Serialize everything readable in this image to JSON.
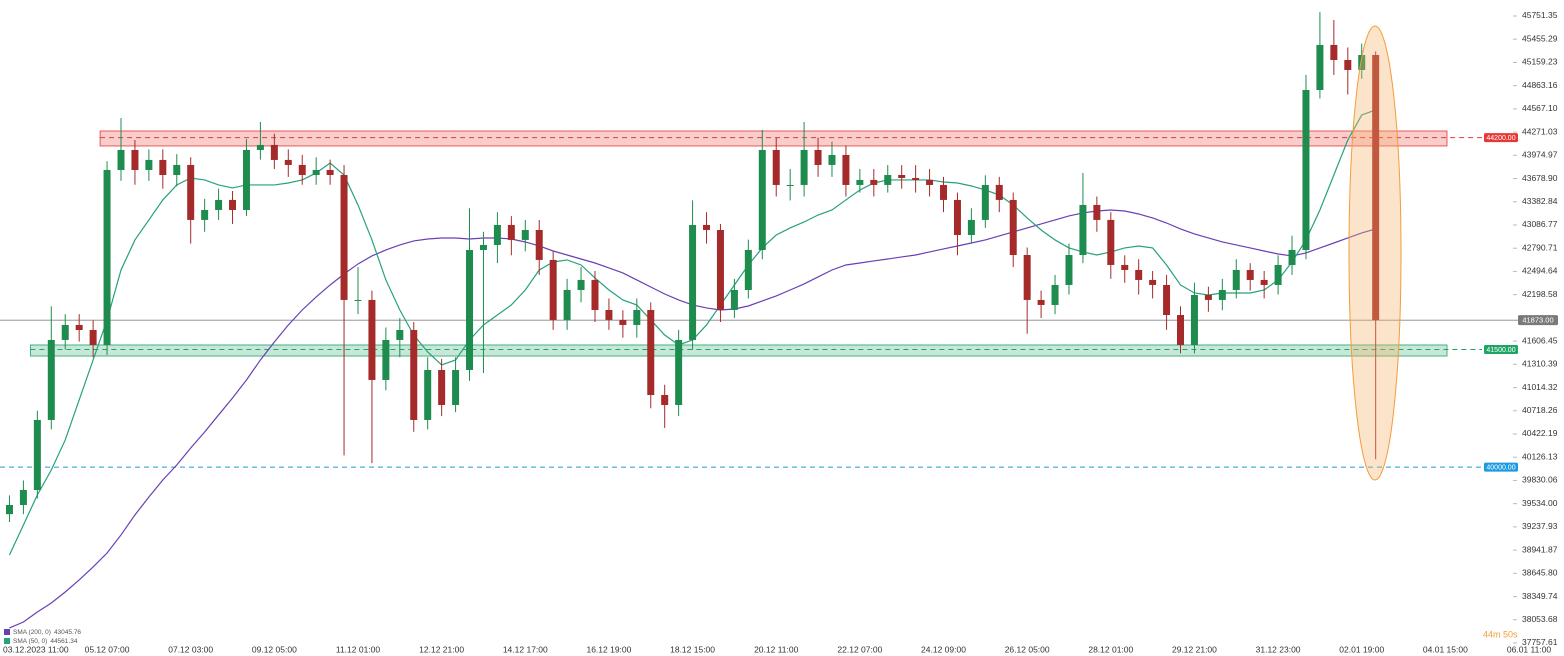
{
  "chart_data": {
    "type": "candlestick",
    "categories": [
      null,
      "03.12.2023 11:00",
      null,
      null,
      null,
      null,
      null,
      "05.12 07:00",
      null,
      null,
      null,
      null,
      null,
      "07.12 03:00",
      null,
      null,
      null,
      null,
      null,
      "09.12 05:00",
      null,
      null,
      null,
      null,
      null,
      "11.12 01:00",
      null,
      null,
      null,
      null,
      null,
      "12.12 21:00",
      null,
      null,
      null,
      null,
      null,
      "14.12 17:00",
      null,
      null,
      null,
      null,
      null,
      "16.12 19:00",
      null,
      null,
      null,
      null,
      null,
      "18.12 15:00",
      null,
      null,
      null,
      null,
      null,
      "20.12 11:00",
      null,
      null,
      null,
      null,
      null,
      "22.12 07:00",
      null,
      null,
      null,
      null,
      null,
      "24.12 09:00",
      null,
      null,
      null,
      null,
      null,
      "26.12 05:00",
      null,
      null,
      null,
      null,
      null,
      "28.12 01:00",
      null,
      null,
      null,
      null,
      null,
      "29.12 21:00",
      null,
      null,
      null,
      null,
      null,
      "31.12 23:00",
      null,
      null,
      null,
      null,
      null,
      "02.01 19:00",
      null,
      null,
      null,
      null,
      null,
      "04.01 15:00",
      null,
      null,
      null,
      null,
      null,
      "06.01 11:00"
    ],
    "open": [
      39400,
      39517,
      39708,
      40601,
      41621,
      41812,
      41748,
      41557,
      43788,
      44043,
      43788,
      43916,
      43724,
      43852,
      43151,
      43278,
      43406,
      43278,
      44043,
      44107,
      43916,
      43852,
      43724,
      43788,
      43724,
      42131,
      42131,
      41111,
      41621,
      41748,
      40601,
      41238,
      40792,
      41238,
      42768,
      42832,
      43087,
      42896,
      43023,
      42641,
      41876,
      42258,
      42386,
      42003,
      41876,
      41812,
      42003,
      40919,
      40792,
      41621,
      43087,
      43023,
      42003,
      42258,
      42768,
      44043,
      43597,
      43597,
      44043,
      43852,
      43979,
      43597,
      43661,
      43597,
      43724,
      43686,
      43661,
      43597,
      43406,
      42959,
      43151,
      43597,
      43406,
      42704,
      42131,
      42067,
      42322,
      42704,
      43342,
      43151,
      42577,
      42513,
      42386,
      42322,
      41939,
      41557,
      42194,
      42131,
      42258,
      42513,
      42386,
      42322,
      42577,
      42768,
      44808,
      45382,
      45190,
      45063,
      45254,
      null,
      null,
      null,
      null,
      null,
      null,
      null,
      null,
      null,
      null,
      null
    ],
    "high": [
      39640,
      39830,
      40720,
      42050,
      41950,
      41950,
      41870,
      43900,
      44450,
      44170,
      44050,
      44050,
      43990,
      43950,
      43420,
      43550,
      43520,
      44180,
      44400,
      44250,
      44050,
      43980,
      43950,
      43920,
      43850,
      42550,
      42250,
      41780,
      41900,
      41850,
      41400,
      41380,
      41400,
      43300,
      43000,
      43250,
      43200,
      43150,
      43150,
      42750,
      42400,
      42550,
      42500,
      42150,
      42000,
      42150,
      42100,
      41050,
      41750,
      43400,
      43250,
      43100,
      42400,
      42900,
      44300,
      44200,
      43800,
      44400,
      44200,
      44150,
      44100,
      43800,
      43800,
      43850,
      43850,
      43850,
      43800,
      43700,
      43500,
      43300,
      43720,
      43700,
      43500,
      42800,
      42250,
      42450,
      42850,
      43750,
      43450,
      43250,
      42700,
      42650,
      42500,
      42450,
      42050,
      42350,
      42300,
      42400,
      42650,
      42600,
      42500,
      42700,
      42950,
      45000,
      45800,
      45700,
      45350,
      45400,
      45300,
      null,
      null,
      null,
      null,
      null,
      null,
      null,
      null,
      null,
      null,
      null
    ],
    "low": [
      39300,
      39400,
      39600,
      40480,
      41500,
      41600,
      41400,
      41430,
      43650,
      43600,
      43650,
      43550,
      43580,
      42850,
      43000,
      43150,
      43100,
      43200,
      43920,
      43800,
      43700,
      43600,
      43600,
      43600,
      40150,
      41950,
      40050,
      40980,
      41400,
      40450,
      40480,
      40650,
      40700,
      41100,
      41200,
      42600,
      42700,
      42750,
      42450,
      41750,
      41750,
      42100,
      41850,
      41750,
      41650,
      41650,
      40750,
      40500,
      40650,
      41500,
      42850,
      41850,
      41900,
      42150,
      42650,
      43450,
      43400,
      43450,
      43700,
      43700,
      43450,
      43500,
      43450,
      43500,
      43550,
      43500,
      43450,
      43250,
      42700,
      42850,
      43050,
      43250,
      42550,
      41700,
      41900,
      41950,
      42200,
      42600,
      43000,
      42400,
      42350,
      42200,
      42150,
      41750,
      41450,
      41450,
      41980,
      42000,
      42150,
      42250,
      42150,
      42200,
      42450,
      42650,
      44700,
      45000,
      44750,
      44950,
      40100,
      null,
      null,
      null,
      null,
      null,
      null,
      null,
      null,
      null,
      null,
      null
    ],
    "close": [
      39517,
      39708,
      40601,
      41621,
      41812,
      41748,
      41557,
      43788,
      44043,
      43788,
      43916,
      43724,
      43852,
      43151,
      43278,
      43406,
      43278,
      44043,
      44107,
      43916,
      43852,
      43724,
      43788,
      43724,
      42131,
      42131,
      41111,
      41621,
      41748,
      40601,
      41238,
      40792,
      41238,
      42768,
      42832,
      43087,
      42896,
      43023,
      42641,
      41876,
      42258,
      42386,
      42003,
      41876,
      41812,
      42003,
      40919,
      40792,
      41621,
      43087,
      43023,
      42003,
      42258,
      42768,
      44043,
      43597,
      43597,
      44043,
      43852,
      43979,
      43597,
      43661,
      43597,
      43724,
      43686,
      43661,
      43597,
      43406,
      42959,
      43151,
      43597,
      43406,
      42704,
      42131,
      42067,
      42322,
      42704,
      43342,
      43151,
      42577,
      42513,
      42386,
      42322,
      41939,
      41557,
      42194,
      42131,
      42258,
      42513,
      42386,
      42322,
      42577,
      42768,
      44808,
      45382,
      45190,
      45063,
      45254,
      41873,
      null,
      null,
      null,
      null,
      null,
      null,
      null,
      null,
      null,
      null,
      null
    ],
    "up_color": "#1e8c4e",
    "down_color": "#a52a2a",
    "series": [
      {
        "name": "SMA (200, 0)",
        "color": "#6a3fb5",
        "legend_value": 43045.76,
        "values": [
          37949,
          38025,
          38153,
          38268,
          38408,
          38561,
          38727,
          38905,
          39135,
          39390,
          39619,
          39836,
          40027,
          40244,
          40448,
          40665,
          40881,
          41111,
          41366,
          41595,
          41812,
          42003,
          42169,
          42322,
          42462,
          42590,
          42692,
          42768,
          42832,
          42883,
          42908,
          42921,
          42921,
          42908,
          42921,
          42921,
          42908,
          42870,
          42819,
          42755,
          42704,
          42653,
          42602,
          42539,
          42475,
          42386,
          42296,
          42207,
          42131,
          42067,
          42029,
          42003,
          42016,
          42054,
          42118,
          42182,
          42258,
          42335,
          42424,
          42513,
          42577,
          42602,
          42628,
          42653,
          42679,
          42704,
          42743,
          42781,
          42819,
          42857,
          42896,
          42947,
          42998,
          43049,
          43100,
          43151,
          43202,
          43240,
          43265,
          43278,
          43265,
          43227,
          43176,
          43112,
          43036,
          42972,
          42921,
          42870,
          42832,
          42794,
          42755,
          42717,
          42692,
          42730,
          42794,
          42857,
          42921,
          42985,
          43036,
          null,
          null,
          null,
          null,
          null,
          null,
          null,
          null,
          null,
          null,
          null
        ]
      },
      {
        "name": "SMA (50, 0)",
        "color": "#26a17b",
        "legend_value": 44561.34,
        "values": [
          38880,
          39262,
          39645,
          39963,
          40346,
          40856,
          41366,
          41876,
          42513,
          42896,
          43151,
          43406,
          43597,
          43686,
          43661,
          43597,
          43559,
          43597,
          43597,
          43597,
          43622,
          43661,
          43750,
          43877,
          43724,
          43342,
          42896,
          42386,
          42003,
          41684,
          41468,
          41302,
          41366,
          41621,
          41812,
          41939,
          42067,
          42258,
          42513,
          42615,
          42641,
          42577,
          42411,
          42258,
          42131,
          42067,
          41876,
          41684,
          41557,
          41621,
          41812,
          42067,
          42322,
          42577,
          42794,
          42959,
          43049,
          43125,
          43214,
          43278,
          43406,
          43533,
          43622,
          43661,
          43661,
          43661,
          43661,
          43635,
          43622,
          43584,
          43533,
          43469,
          43342,
          43176,
          43023,
          42896,
          42794,
          42743,
          42704,
          42743,
          42794,
          42819,
          42794,
          42577,
          42322,
          42220,
          42194,
          42220,
          42220,
          42220,
          42258,
          42386,
          42615,
          42896,
          43278,
          43724,
          44170,
          44489,
          44553,
          null,
          null,
          null,
          null,
          null,
          null,
          null,
          null,
          null,
          null,
          null
        ]
      }
    ],
    "ylim": [
      37732,
      45955
    ],
    "yticks": [
      45751.35,
      45455.29,
      45159.23,
      44863.16,
      {
        "value": 44567.1,
        "label": "44567.10"
      },
      44271.03,
      43974.97,
      {
        "value": 43678.9,
        "label": "43678.90"
      },
      43382.84,
      43086.77,
      42790.71,
      42494.64,
      42198.58,
      41606.45,
      41310.39,
      41014.32,
      40718.26,
      40422.19,
      40126.13,
      39830.06,
      {
        "value": 39534,
        "label": "39534.00"
      },
      39237.93,
      38941.87,
      {
        "value": 38645.8,
        "label": "38645.80"
      },
      38349.74,
      38053.68,
      37757.61
    ],
    "levels": [
      {
        "value": 44200,
        "label": "44200.00",
        "color": "#e53935",
        "zone": [
          44094,
          44285
        ],
        "zone_start": 7
      },
      {
        "value": 41500,
        "label": "41500.00",
        "color": "#1fa463",
        "zone": [
          41416,
          41557
        ],
        "zone_start": 2
      },
      {
        "value": 40000,
        "label": "40000.00",
        "color": "#1e9be0"
      }
    ],
    "current_price": {
      "value": 41873,
      "label": "41873.00"
    },
    "timer": "44m 50s"
  }
}
